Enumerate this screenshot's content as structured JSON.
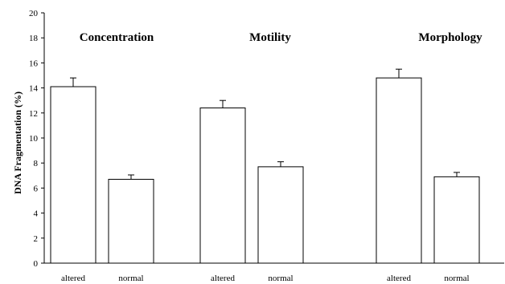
{
  "chart_data": {
    "type": "bar",
    "title": "",
    "ylabel": "DNA Fragmentation (%)",
    "xlabel": "",
    "ylim": [
      0,
      20
    ],
    "yticks": [
      0,
      2,
      4,
      6,
      8,
      10,
      12,
      14,
      16,
      18,
      20
    ],
    "grid": false,
    "groups": [
      {
        "name": "Concentration",
        "bars": [
          {
            "label": "altered",
            "value": 14.1,
            "error": 0.7
          },
          {
            "label": "normal",
            "value": 6.7,
            "error": 0.35
          }
        ]
      },
      {
        "name": "Motility",
        "bars": [
          {
            "label": "altered",
            "value": 12.4,
            "error": 0.6
          },
          {
            "label": "normal",
            "value": 7.7,
            "error": 0.4
          }
        ]
      },
      {
        "name": "Morphology",
        "bars": [
          {
            "label": "altered",
            "value": 14.8,
            "error": 0.7
          },
          {
            "label": "normal",
            "value": 6.9,
            "error": 0.35
          }
        ]
      }
    ]
  }
}
